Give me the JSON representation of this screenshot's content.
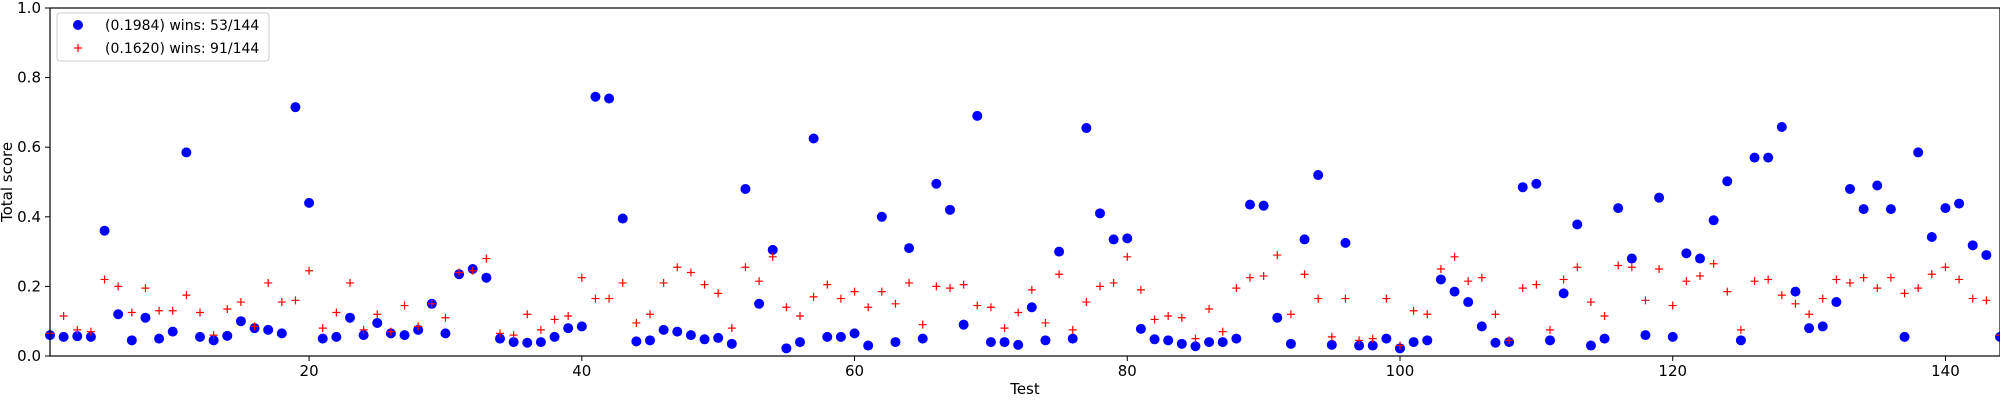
{
  "chart_data": {
    "type": "scatter",
    "xlabel": "Test",
    "ylabel": "Total score",
    "xlim": [
      1,
      144
    ],
    "ylim": [
      0,
      1.0
    ],
    "x_ticks": [
      20,
      40,
      60,
      80,
      100,
      120,
      140
    ],
    "x_tick_labels": [
      "20",
      "40",
      "60",
      "80",
      "100",
      "120",
      "140"
    ],
    "y_ticks": [
      0.0,
      0.2,
      0.4,
      0.6,
      0.8,
      1.0
    ],
    "y_tick_labels": [
      "0.0",
      "0.2",
      "0.4",
      "0.6",
      "0.8",
      "1.0"
    ],
    "grid": false,
    "legend_position": "top-left",
    "series": [
      {
        "name": "(0.1984) wins: 53/144",
        "marker": "circle",
        "color": "#0000ff",
        "x": [
          1,
          2,
          3,
          4,
          5,
          6,
          7,
          8,
          9,
          10,
          11,
          12,
          13,
          14,
          15,
          16,
          17,
          18,
          19,
          20,
          21,
          22,
          23,
          24,
          25,
          26,
          27,
          28,
          29,
          30,
          31,
          32,
          33,
          34,
          35,
          36,
          37,
          38,
          39,
          40,
          41,
          42,
          43,
          44,
          45,
          46,
          47,
          48,
          49,
          50,
          51,
          52,
          53,
          54,
          55,
          56,
          57,
          58,
          59,
          60,
          61,
          62,
          63,
          64,
          65,
          66,
          67,
          68,
          69,
          70,
          71,
          72,
          73,
          74,
          75,
          76,
          77,
          78,
          79,
          80,
          81,
          82,
          83,
          84,
          85,
          86,
          87,
          88,
          89,
          90,
          91,
          92,
          93,
          94,
          95,
          96,
          97,
          98,
          99,
          100,
          101,
          102,
          103,
          104,
          105,
          106,
          107,
          108,
          109,
          110,
          111,
          112,
          113,
          114,
          115,
          116,
          117,
          118,
          119,
          120,
          121,
          122,
          123,
          124,
          125,
          126,
          127,
          128,
          129,
          130,
          131,
          132,
          133,
          134,
          135,
          136,
          137,
          138,
          139,
          140,
          141,
          142,
          143,
          144
        ],
        "y": [
          0.06,
          0.055,
          0.057,
          0.055,
          0.36,
          0.12,
          0.045,
          0.11,
          0.05,
          0.07,
          0.585,
          0.055,
          0.045,
          0.058,
          0.1,
          0.08,
          0.075,
          0.065,
          0.715,
          0.44,
          0.05,
          0.055,
          0.11,
          0.06,
          0.095,
          0.065,
          0.06,
          0.075,
          0.15,
          0.065,
          0.235,
          0.25,
          0.225,
          0.05,
          0.04,
          0.038,
          0.04,
          0.055,
          0.08,
          0.085,
          0.745,
          0.74,
          0.395,
          0.042,
          0.045,
          0.075,
          0.07,
          0.06,
          0.048,
          0.052,
          0.035,
          0.48,
          0.15,
          0.305,
          0.022,
          0.04,
          0.625,
          0.055,
          0.055,
          0.065,
          0.03,
          0.4,
          0.04,
          0.31,
          0.05,
          0.495,
          0.42,
          0.09,
          0.69,
          0.04,
          0.04,
          0.032,
          0.14,
          0.045,
          0.3,
          0.05,
          0.655,
          0.41,
          0.335,
          0.338,
          0.078,
          0.048,
          0.045,
          0.035,
          0.028,
          0.04,
          0.04,
          0.05,
          0.435,
          0.432,
          0.11,
          0.035,
          0.335,
          0.52,
          0.032,
          0.325,
          0.03,
          0.03,
          0.05,
          0.022,
          0.04,
          0.045,
          0.22,
          0.185,
          0.155,
          0.085,
          0.038,
          0.04,
          0.485,
          0.495,
          0.045,
          0.18,
          0.378,
          0.03,
          0.05,
          0.425,
          0.28,
          0.06,
          0.455,
          0.055,
          0.295,
          0.28,
          0.39,
          0.502,
          0.045,
          0.57,
          0.57,
          0.658,
          0.185,
          0.08,
          0.085,
          0.155,
          0.48,
          0.422,
          0.49,
          0.422,
          0.055,
          0.585,
          0.342,
          0.425,
          0.438,
          0.318,
          0.29,
          0.055
        ]
      },
      {
        "name": "(0.1620) wins: 91/144",
        "marker": "plus",
        "color": "#ff0000",
        "x": [
          1,
          2,
          3,
          4,
          5,
          6,
          7,
          8,
          9,
          10,
          11,
          12,
          13,
          14,
          15,
          16,
          17,
          18,
          19,
          20,
          21,
          22,
          23,
          24,
          25,
          26,
          27,
          28,
          29,
          30,
          31,
          32,
          33,
          34,
          35,
          36,
          37,
          38,
          39,
          40,
          41,
          42,
          43,
          44,
          45,
          46,
          47,
          48,
          49,
          50,
          51,
          52,
          53,
          54,
          55,
          56,
          57,
          58,
          59,
          60,
          61,
          62,
          63,
          64,
          65,
          66,
          67,
          68,
          69,
          70,
          71,
          72,
          73,
          74,
          75,
          76,
          77,
          78,
          79,
          80,
          81,
          82,
          83,
          84,
          85,
          86,
          87,
          88,
          89,
          90,
          91,
          92,
          93,
          94,
          95,
          96,
          97,
          98,
          99,
          100,
          101,
          102,
          103,
          104,
          105,
          106,
          107,
          108,
          109,
          110,
          111,
          112,
          113,
          114,
          115,
          116,
          117,
          118,
          119,
          120,
          121,
          122,
          123,
          124,
          125,
          126,
          127,
          128,
          129,
          130,
          131,
          132,
          133,
          134,
          135,
          136,
          137,
          138,
          139,
          140,
          141,
          142,
          143,
          144
        ],
        "y": [
          0.065,
          0.115,
          0.075,
          0.07,
          0.22,
          0.2,
          0.125,
          0.195,
          0.13,
          0.13,
          0.175,
          0.125,
          0.06,
          0.135,
          0.155,
          0.085,
          0.21,
          0.155,
          0.16,
          0.245,
          0.08,
          0.125,
          0.21,
          0.075,
          0.12,
          0.07,
          0.145,
          0.085,
          0.15,
          0.11,
          0.24,
          0.245,
          0.28,
          0.065,
          0.06,
          0.12,
          0.075,
          0.105,
          0.115,
          0.225,
          0.165,
          0.165,
          0.21,
          0.095,
          0.12,
          0.21,
          0.255,
          0.24,
          0.205,
          0.18,
          0.08,
          0.255,
          0.215,
          0.285,
          0.14,
          0.115,
          0.17,
          0.205,
          0.165,
          0.185,
          0.14,
          0.185,
          0.15,
          0.21,
          0.09,
          0.2,
          0.195,
          0.205,
          0.145,
          0.14,
          0.08,
          0.125,
          0.19,
          0.095,
          0.235,
          0.075,
          0.155,
          0.2,
          0.21,
          0.285,
          0.19,
          0.105,
          0.115,
          0.11,
          0.05,
          0.135,
          0.07,
          0.195,
          0.225,
          0.23,
          0.29,
          0.12,
          0.235,
          0.165,
          0.055,
          0.165,
          0.045,
          0.05,
          0.165,
          0.03,
          0.13,
          0.12,
          0.25,
          0.285,
          0.215,
          0.225,
          0.12,
          0.045,
          0.195,
          0.205,
          0.075,
          0.22,
          0.255,
          0.155,
          0.115,
          0.26,
          0.255,
          0.16,
          0.25,
          0.145,
          0.215,
          0.23,
          0.265,
          0.185,
          0.075,
          0.215,
          0.22,
          0.175,
          0.15,
          0.12,
          0.165,
          0.22,
          0.21,
          0.225,
          0.195,
          0.225,
          0.18,
          0.195,
          0.235,
          0.255,
          0.22,
          0.165,
          0.16,
          0.06
        ]
      }
    ]
  }
}
